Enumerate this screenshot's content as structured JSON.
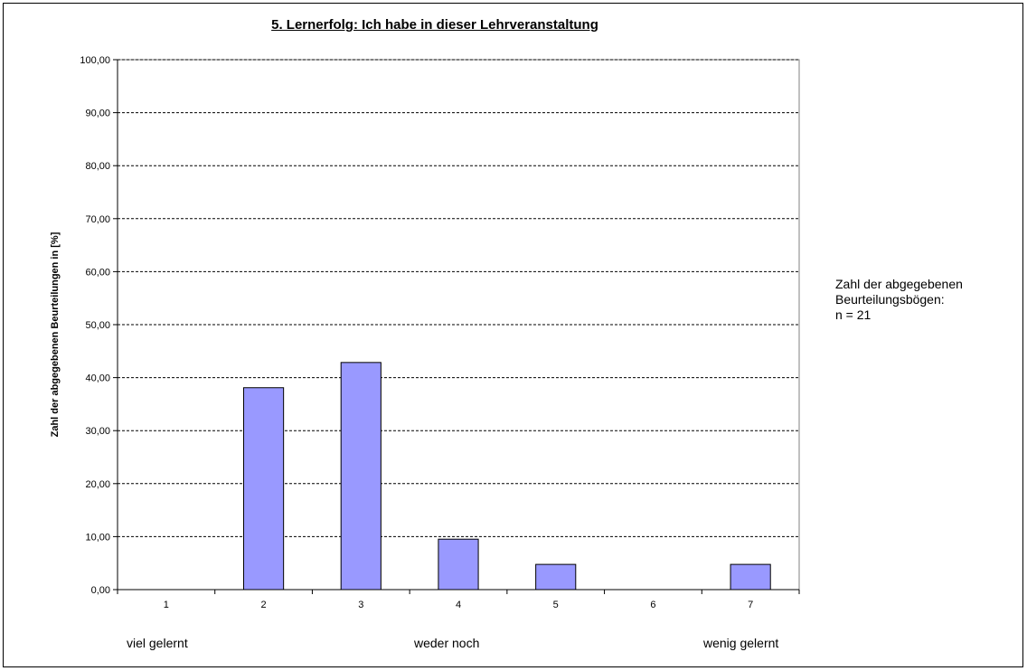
{
  "chart_data": {
    "type": "bar",
    "title": "5. Lernerfolg: Ich habe in dieser Lehrveranstaltung",
    "ylabel": "Zahl der abgegebenen Beurteilungen in [%]",
    "xlabel": "",
    "categories": [
      "1",
      "2",
      "3",
      "4",
      "5",
      "6",
      "7"
    ],
    "values": [
      0,
      38.1,
      42.86,
      9.52,
      4.76,
      0,
      4.76
    ],
    "ylim": [
      0,
      100
    ],
    "yticks": [
      "0,00",
      "10,00",
      "20,00",
      "30,00",
      "40,00",
      "50,00",
      "60,00",
      "70,00",
      "80,00",
      "90,00",
      "100,00"
    ],
    "grid": true,
    "bar_color": "#9999ff",
    "scale_labels": {
      "left": "viel gelernt",
      "middle": "weder noch",
      "right": "wenig gelernt"
    }
  },
  "note": {
    "line1": "Zahl der abgegebenen",
    "line2": "Beurteilungsbögen:",
    "line3": "n = 21"
  }
}
